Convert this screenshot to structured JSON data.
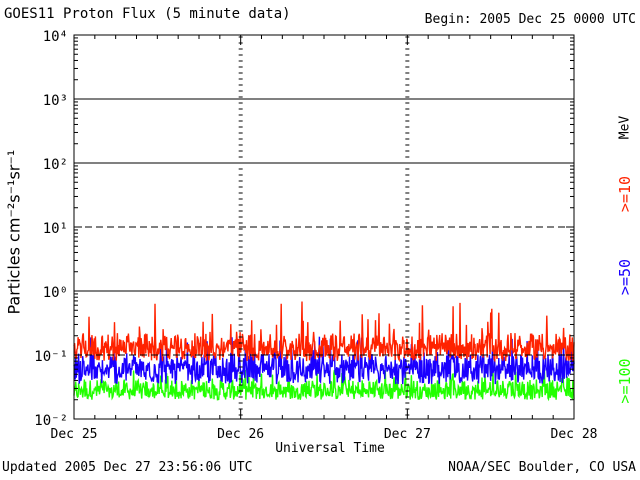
{
  "header": {
    "title": "GOES11 Proton Flux (5 minute data)",
    "begin": "Begin: 2005 Dec 25 0000 UTC"
  },
  "footer": {
    "updated": "Updated 2005 Dec 27 23:56:06 UTC",
    "source": "NOAA/SEC Boulder, CO USA"
  },
  "colors": {
    "p10": "#ff2200",
    "p50": "#1a00ff",
    "p100": "#22ff00",
    "frame": "#000000",
    "background": "#ffffff"
  },
  "chart_data": {
    "type": "line",
    "title": "GOES11 Proton Flux (5 minute data)",
    "xlabel": "Universal Time",
    "ylabel": "Particles cm⁻²s⁻¹sr⁻¹",
    "yscale": "log",
    "ylim": [
      0.01,
      10000
    ],
    "yticks": [
      {
        "value": 0.01,
        "label": "10⁻²"
      },
      {
        "value": 0.1,
        "label": "10⁻¹"
      },
      {
        "value": 1,
        "label": "10⁰"
      },
      {
        "value": 10,
        "label": "10¹"
      },
      {
        "value": 100,
        "label": "10²"
      },
      {
        "value": 1000,
        "label": "10³"
      },
      {
        "value": 10000,
        "label": "10⁴"
      }
    ],
    "xticks": [
      "Dec 25",
      "Dec 26",
      "Dec 27",
      "Dec 28"
    ],
    "xlim_days": [
      0,
      3
    ],
    "reference_lines": [
      {
        "value": 1,
        "style": "solid"
      },
      {
        "value": 10,
        "style": "dashed"
      },
      {
        "value": 100,
        "style": "solid"
      },
      {
        "value": 1000,
        "style": "solid"
      },
      {
        "value": 0.1,
        "style": "dashed"
      }
    ],
    "legend_unit": "MeV",
    "series": [
      {
        "name": ">=10",
        "color": "#ff2200",
        "typical": 0.14,
        "range": [
          0.08,
          0.7
        ]
      },
      {
        "name": ">=50",
        "color": "#1a00ff",
        "typical": 0.065,
        "range": [
          0.035,
          0.2
        ]
      },
      {
        "name": ">=100",
        "color": "#22ff00",
        "typical": 0.03,
        "range": [
          0.02,
          0.06
        ]
      }
    ]
  }
}
